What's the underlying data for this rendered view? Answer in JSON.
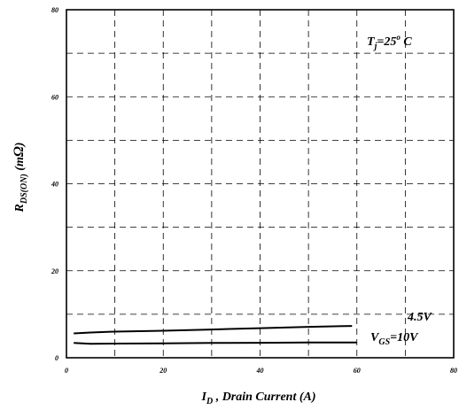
{
  "chart_data": {
    "type": "line",
    "title": "",
    "xlabel": {
      "main": "I",
      "sub": "D",
      "rest": " , Drain Current (A)"
    },
    "ylabel": {
      "main": "R",
      "sub": "DS(ON)",
      "rest": " (m",
      "omega": "Ω",
      "close": ")"
    },
    "xlim": [
      0,
      80
    ],
    "ylim": [
      0,
      80
    ],
    "x_ticks": [
      0,
      20,
      40,
      60,
      80
    ],
    "y_ticks": [
      0,
      20,
      40,
      60,
      80
    ],
    "x_tick_labels": [
      "0",
      "20",
      "40",
      "60",
      "80"
    ],
    "y_tick_labels": [
      "0",
      "20",
      "40",
      "60",
      "80"
    ],
    "grid": "dashed",
    "series": [
      {
        "name": "4.5V",
        "x": [
          1.5,
          5,
          10,
          20,
          30,
          40,
          50,
          59
        ],
        "y": [
          5.6,
          5.8,
          6.0,
          6.2,
          6.5,
          6.8,
          7.1,
          7.3
        ]
      },
      {
        "name": "V_GS=10V",
        "x": [
          1.5,
          5,
          10,
          20,
          30,
          40,
          50,
          60
        ],
        "y": [
          3.4,
          3.2,
          3.25,
          3.3,
          3.4,
          3.45,
          3.5,
          3.5
        ]
      }
    ],
    "annotations": {
      "tj": {
        "main": "T",
        "sub": "j",
        "rest": "=25",
        "sup": "o",
        "unit": " C"
      },
      "v45": "4.5V",
      "vgs": {
        "main": "V",
        "sub": "GS",
        "rest": "=10V"
      }
    }
  }
}
